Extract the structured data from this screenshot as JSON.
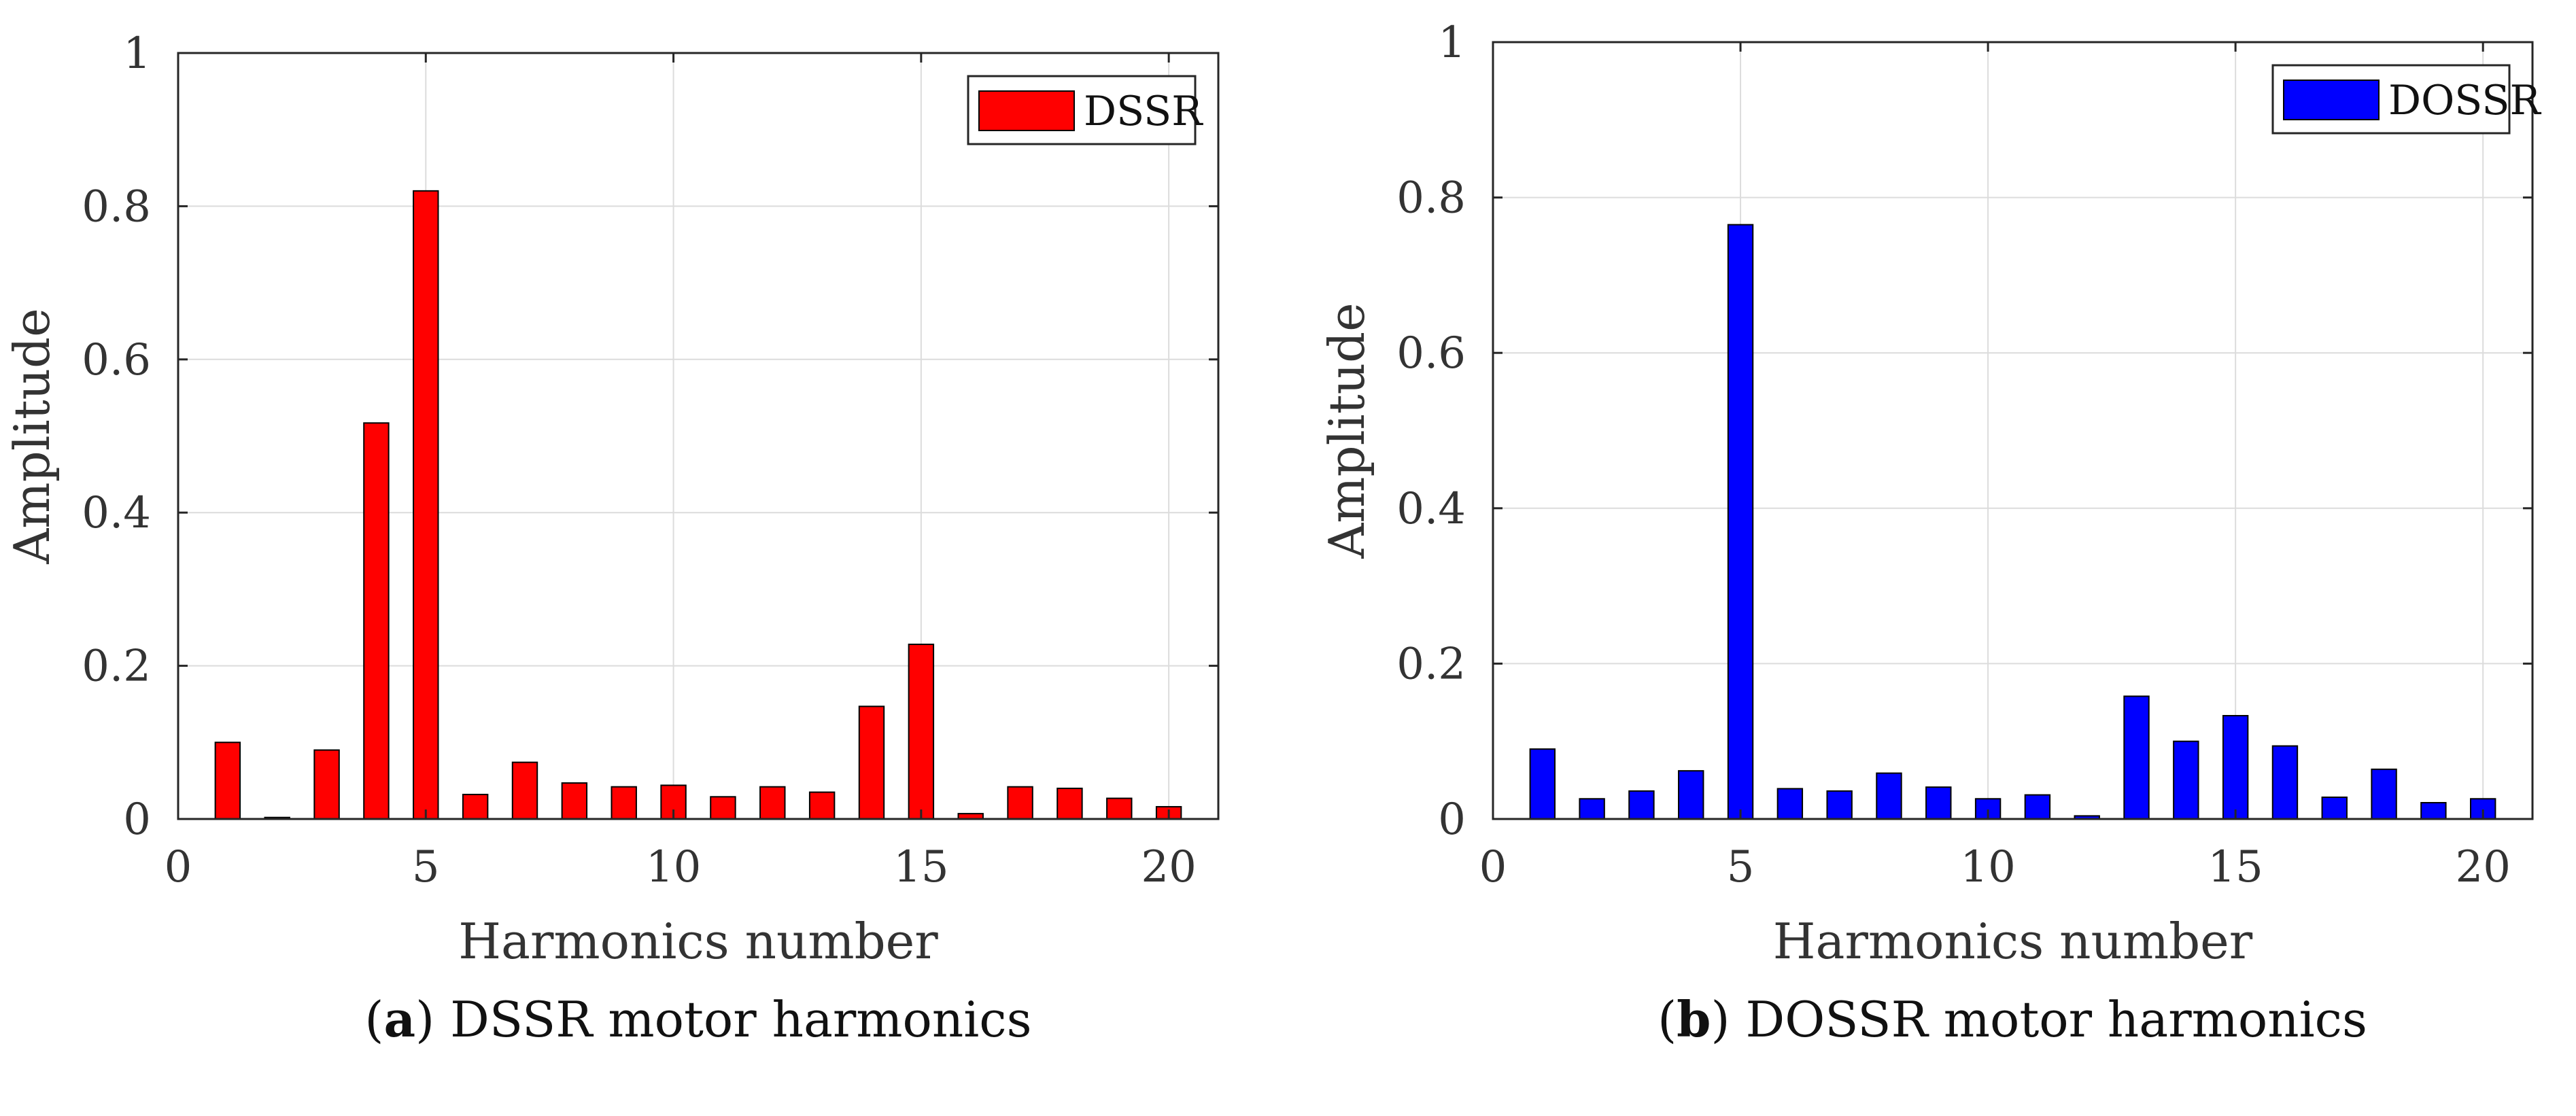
{
  "chart_data": [
    {
      "type": "bar",
      "panel_letter": "a",
      "caption": "DSSR motor harmonics",
      "xlabel": "Harmonics number",
      "ylabel": "Amplitude",
      "xlim": [
        0,
        21
      ],
      "ylim": [
        0,
        1
      ],
      "xticks": [
        0,
        5,
        10,
        15,
        20
      ],
      "yticks": [
        0,
        0.2,
        0.4,
        0.6,
        0.8,
        1
      ],
      "ytick_labels": [
        "0",
        "0.2",
        "0.4",
        "0.6",
        "0.8",
        "1"
      ],
      "grid": true,
      "legend_position": "top-right",
      "series": [
        {
          "name": "DSSR",
          "color": "#ff0000",
          "x": [
            1,
            2,
            3,
            4,
            5,
            6,
            7,
            8,
            9,
            10,
            11,
            12,
            13,
            14,
            15,
            16,
            17,
            18,
            19,
            20
          ],
          "values": [
            0.1,
            0.002,
            0.09,
            0.517,
            0.82,
            0.032,
            0.074,
            0.047,
            0.042,
            0.044,
            0.029,
            0.042,
            0.035,
            0.147,
            0.228,
            0.007,
            0.042,
            0.04,
            0.027,
            0.016
          ]
        }
      ]
    },
    {
      "type": "bar",
      "panel_letter": "b",
      "caption": "DOSSR motor harmonics",
      "xlabel": "Harmonics number",
      "ylabel": "Amplitude",
      "xlim": [
        0,
        21
      ],
      "ylim": [
        0,
        1
      ],
      "xticks": [
        0,
        5,
        10,
        15,
        20
      ],
      "yticks": [
        0,
        0.2,
        0.4,
        0.6,
        0.8,
        1
      ],
      "ytick_labels": [
        "0",
        "0.2",
        "0.4",
        "0.6",
        "0.8",
        "1"
      ],
      "grid": true,
      "legend_position": "top-right",
      "series": [
        {
          "name": "DOSSR",
          "color": "#0000ff",
          "x": [
            1,
            2,
            3,
            4,
            5,
            6,
            7,
            8,
            9,
            10,
            11,
            12,
            13,
            14,
            15,
            16,
            17,
            18,
            19,
            20
          ],
          "values": [
            0.09,
            0.026,
            0.036,
            0.062,
            0.765,
            0.039,
            0.036,
            0.059,
            0.041,
            0.026,
            0.031,
            0.004,
            0.158,
            0.1,
            0.133,
            0.094,
            0.028,
            0.064,
            0.021,
            0.026
          ]
        }
      ]
    }
  ]
}
